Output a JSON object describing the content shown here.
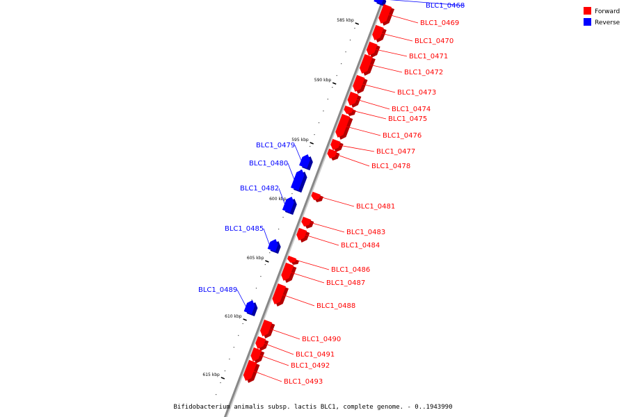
{
  "caption": "Bifidobacterium animalis subsp. lactis BLC1, complete genome. - 0..1943990",
  "legend": [
    {
      "label": "Forward",
      "color": "#ff0000"
    },
    {
      "label": "Reverse",
      "color": "#0000ff"
    }
  ],
  "colors": {
    "forward": "#ff0000",
    "reverse": "#0000ff",
    "backbone": "#888888"
  },
  "ticks": [
    {
      "label": "585 kbp"
    },
    {
      "label": "590 kbp"
    },
    {
      "label": "595 kbp"
    },
    {
      "label": "600 kbp"
    },
    {
      "label": "605 kbp"
    },
    {
      "label": "610 kbp"
    },
    {
      "label": "615 kbp"
    }
  ],
  "genes": [
    {
      "id": "BLC1_0468",
      "strand": "reverse"
    },
    {
      "id": "BLC1_0469",
      "strand": "forward"
    },
    {
      "id": "BLC1_0470",
      "strand": "forward"
    },
    {
      "id": "BLC1_0471",
      "strand": "forward"
    },
    {
      "id": "BLC1_0472",
      "strand": "forward"
    },
    {
      "id": "BLC1_0473",
      "strand": "forward"
    },
    {
      "id": "BLC1_0474",
      "strand": "forward"
    },
    {
      "id": "BLC1_0475",
      "strand": "forward"
    },
    {
      "id": "BLC1_0476",
      "strand": "forward"
    },
    {
      "id": "BLC1_0477",
      "strand": "forward"
    },
    {
      "id": "BLC1_0478",
      "strand": "forward"
    },
    {
      "id": "BLC1_0479",
      "strand": "reverse"
    },
    {
      "id": "BLC1_0480",
      "strand": "reverse"
    },
    {
      "id": "BLC1_0482",
      "strand": "reverse"
    },
    {
      "id": "BLC1_0481",
      "strand": "forward"
    },
    {
      "id": "BLC1_0483",
      "strand": "forward"
    },
    {
      "id": "BLC1_0484",
      "strand": "forward"
    },
    {
      "id": "BLC1_0485",
      "strand": "reverse"
    },
    {
      "id": "BLC1_0486",
      "strand": "forward"
    },
    {
      "id": "BLC1_0487",
      "strand": "forward"
    },
    {
      "id": "BLC1_0488",
      "strand": "forward"
    },
    {
      "id": "BLC1_0489",
      "strand": "reverse"
    },
    {
      "id": "BLC1_0490",
      "strand": "forward"
    },
    {
      "id": "BLC1_0491",
      "strand": "forward"
    },
    {
      "id": "BLC1_0492",
      "strand": "forward"
    },
    {
      "id": "BLC1_0493",
      "strand": "forward"
    }
  ]
}
